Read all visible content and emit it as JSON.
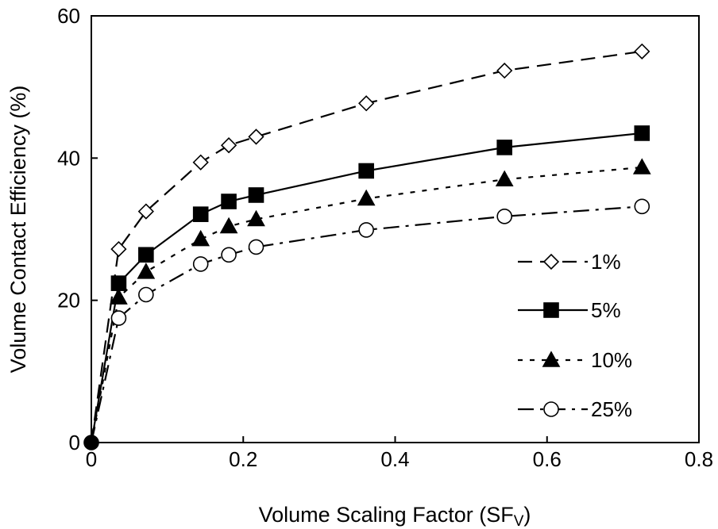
{
  "chart_data": {
    "type": "line",
    "title": "",
    "xlabel": "Volume Scaling Factor (SF",
    "xlabel_sub": "V",
    "xlabel_close": ")",
    "ylabel": "Volume Contact Efficiency (%)",
    "xlim": [
      0,
      0.8
    ],
    "ylim": [
      0,
      60
    ],
    "xticks": [
      "0",
      "0.2",
      "0.4",
      "0.6",
      "0.8"
    ],
    "xtick_values": [
      0,
      0.2,
      0.4,
      0.6,
      0.8
    ],
    "yticks": [
      "0",
      "20",
      "40",
      "60"
    ],
    "ytick_values": [
      0,
      20,
      40,
      60
    ],
    "grid": false,
    "legend_position": "right",
    "series": [
      {
        "name": "1%",
        "marker": "diamond-open",
        "line": "long-dash",
        "color": "#000000",
        "x": [
          0,
          0.036,
          0.072,
          0.144,
          0.181,
          0.217,
          0.362,
          0.544,
          0.725
        ],
        "y": [
          0,
          27.2,
          32.5,
          39.4,
          41.8,
          43.0,
          47.7,
          52.3,
          55.0
        ]
      },
      {
        "name": "5%",
        "marker": "square-filled",
        "line": "solid",
        "color": "#000000",
        "x": [
          0,
          0.036,
          0.072,
          0.144,
          0.181,
          0.217,
          0.362,
          0.544,
          0.725
        ],
        "y": [
          0,
          22.4,
          26.4,
          32.1,
          33.9,
          34.8,
          38.2,
          41.5,
          43.5
        ]
      },
      {
        "name": "10%",
        "marker": "triangle-filled",
        "line": "short-dash",
        "color": "#000000",
        "x": [
          0,
          0.036,
          0.072,
          0.144,
          0.181,
          0.217,
          0.362,
          0.544,
          0.725
        ],
        "y": [
          0,
          20.4,
          24.0,
          28.6,
          30.4,
          31.4,
          34.3,
          37.0,
          38.7
        ]
      },
      {
        "name": "25%",
        "marker": "circle-open",
        "line": "dash-dot",
        "color": "#000000",
        "x": [
          0,
          0.036,
          0.072,
          0.144,
          0.181,
          0.217,
          0.362,
          0.544,
          0.725
        ],
        "y": [
          0,
          17.5,
          20.8,
          25.1,
          26.4,
          27.5,
          29.9,
          31.8,
          33.2
        ]
      }
    ]
  }
}
